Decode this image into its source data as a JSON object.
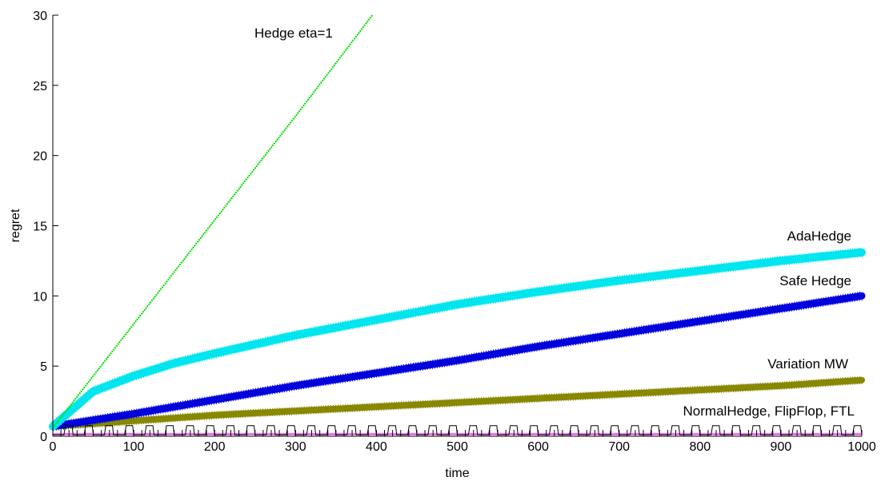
{
  "chart_data": {
    "type": "line",
    "xlabel": "time",
    "ylabel": "regret",
    "xlim": [
      0,
      1000
    ],
    "ylim": [
      0,
      30
    ],
    "xticks": [
      0,
      100,
      200,
      300,
      400,
      500,
      600,
      700,
      800,
      900,
      1000
    ],
    "yticks": [
      0,
      5,
      10,
      15,
      20,
      25,
      30
    ],
    "grid": false,
    "series": [
      {
        "name": "Hedge eta=1",
        "color": "#00dd00",
        "style": "dotted-line",
        "x": [
          0,
          100,
          200,
          300,
          395
        ],
        "y": [
          0.6,
          8.0,
          15.4,
          22.8,
          30.0
        ]
      },
      {
        "name": "AdaHedge",
        "color": "#00e5ee",
        "style": "thick-cross-markers",
        "x": [
          0,
          50,
          100,
          150,
          200,
          300,
          400,
          500,
          600,
          700,
          800,
          900,
          1000
        ],
        "y": [
          0.7,
          3.2,
          4.3,
          5.2,
          5.9,
          7.2,
          8.3,
          9.4,
          10.3,
          11.1,
          11.8,
          12.5,
          13.1
        ]
      },
      {
        "name": "Safe Hedge",
        "color": "#0000dd",
        "style": "thick-cross-markers",
        "x": [
          0,
          100,
          200,
          300,
          400,
          500,
          600,
          700,
          800,
          900,
          1000
        ],
        "y": [
          0.7,
          1.6,
          2.6,
          3.6,
          4.5,
          5.4,
          6.4,
          7.3,
          8.2,
          9.1,
          10.0
        ]
      },
      {
        "name": "Variation MW",
        "color": "#888800",
        "style": "thick-cross-markers",
        "x": [
          0,
          100,
          200,
          300,
          400,
          500,
          600,
          700,
          800,
          900,
          1000
        ],
        "y": [
          0.7,
          1.1,
          1.5,
          1.8,
          2.1,
          2.4,
          2.7,
          3.0,
          3.3,
          3.6,
          4.0
        ]
      },
      {
        "name": "NormalHedge, FlipFlop, FTL",
        "color": "#000000",
        "accent_color": "#ff33ff",
        "style": "square-wave",
        "period": 25,
        "low": 0.1,
        "high": 0.75
      }
    ],
    "annotations": [
      {
        "text": "Hedge eta=1",
        "series": "Hedge eta=1"
      },
      {
        "text": "AdaHedge",
        "series": "AdaHedge"
      },
      {
        "text": "Safe Hedge",
        "series": "Safe Hedge"
      },
      {
        "text": "Variation MW",
        "series": "Variation MW"
      },
      {
        "text": "NormalHedge, FlipFlop, FTL",
        "series": "NormalHedge, FlipFlop, FTL"
      }
    ]
  }
}
